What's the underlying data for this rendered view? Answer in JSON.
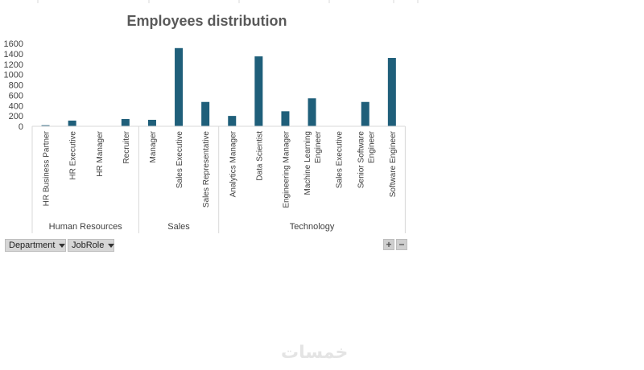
{
  "chart_data": {
    "type": "bar",
    "title": "Employees distribution",
    "xlabel": "",
    "ylabel": "",
    "ylim": [
      0,
      1600
    ],
    "yticks": [
      0,
      200,
      400,
      600,
      800,
      1000,
      1200,
      1400,
      1600
    ],
    "groups": [
      {
        "name": "Human Resources",
        "categories": [
          "HR Business Partner",
          "HR Executive",
          "HR Manager",
          "Recruiter"
        ],
        "values": [
          20,
          110,
          0,
          140
        ]
      },
      {
        "name": "Sales",
        "categories": [
          "Manager",
          "Sales Executive",
          "Sales Representative"
        ],
        "values": [
          125,
          1510,
          470
        ]
      },
      {
        "name": "Technology",
        "categories": [
          "Analytics Manager",
          "Data Scientist",
          "Engineering Manager",
          "Machine Learning Engineer",
          "Sales Executive",
          "Senior Software Engineer",
          "Software Engineer"
        ],
        "values": [
          200,
          1350,
          290,
          540,
          0,
          470,
          1320
        ]
      }
    ],
    "bar_color": "#1f5f7a"
  },
  "pivot_buttons": {
    "department": "Department",
    "jobrole": "JobRole"
  },
  "zoom": {
    "expand": "+",
    "collapse": "−"
  },
  "watermark": "خمسات"
}
